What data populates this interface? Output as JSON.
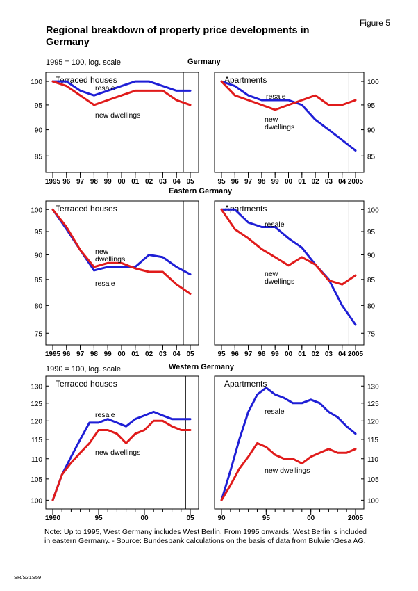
{
  "figure_label": "Figure 5",
  "title": "Regional breakdown of property price developments in Germany",
  "note": "Note: Up to 1995, West Germany includes West Berlin. From 1995 onwards, West Berlin is included in eastern Germany. - Source: Bundesbank calculations on the basis of data from BulwienGesa AG.",
  "code": "SR/S31S59",
  "colors": {
    "resale": "#1f1fd6",
    "new_dwellings": "#e01b1b"
  },
  "scale_notes": [
    "1995 = 100, log. scale",
    "1990 = 100, log. scale"
  ],
  "region_titles": [
    "Germany",
    "Eastern Germany",
    "Western Germany"
  ],
  "chart_data": [
    {
      "type": "line",
      "region": "Germany",
      "title": "Terraced houses",
      "scale": "log",
      "x": [
        1995,
        1996,
        1997,
        1998,
        1999,
        2000,
        2001,
        2002,
        2003,
        2004,
        2005
      ],
      "xticklabels": [
        "1995",
        "96",
        "97",
        "98",
        "99",
        "00",
        "01",
        "02",
        "03",
        "04",
        "05"
      ],
      "ylim": [
        82,
        102
      ],
      "yticks": [
        85,
        90,
        95,
        100
      ],
      "series": [
        {
          "name": "resale",
          "values": [
            100,
            100,
            98,
            97,
            98,
            99,
            100,
            100,
            99,
            98,
            98
          ]
        },
        {
          "name": "new dwellings",
          "values": [
            100,
            99,
            97,
            95,
            96,
            97,
            98,
            98,
            98,
            96,
            95
          ]
        }
      ]
    },
    {
      "type": "line",
      "region": "Germany",
      "title": "Apartments",
      "scale": "log",
      "x": [
        1995,
        1996,
        1997,
        1998,
        1999,
        2000,
        2001,
        2002,
        2003,
        2004,
        2005
      ],
      "xticklabels": [
        "95",
        "96",
        "97",
        "98",
        "99",
        "00",
        "01",
        "02",
        "03",
        "04",
        "2005"
      ],
      "ylim": [
        82,
        102
      ],
      "yticks": [
        85,
        90,
        95,
        100
      ],
      "series": [
        {
          "name": "resale",
          "values": [
            100,
            99,
            97,
            96,
            96,
            96,
            95,
            92,
            90,
            88,
            86
          ]
        },
        {
          "name": "new\ndwellings",
          "values": [
            100,
            97,
            96,
            95,
            94,
            95,
            96,
            97,
            95,
            95,
            96
          ]
        }
      ]
    },
    {
      "type": "line",
      "region": "Eastern Germany",
      "title": "Terraced houses",
      "scale": "log",
      "x": [
        1995,
        1996,
        1997,
        1998,
        1999,
        2000,
        2001,
        2002,
        2003,
        2004,
        2005
      ],
      "xticklabels": [
        "1995",
        "96",
        "97",
        "98",
        "99",
        "00",
        "01",
        "02",
        "03",
        "04",
        "05"
      ],
      "ylim": [
        73,
        102
      ],
      "yticks": [
        75,
        80,
        85,
        90,
        95,
        100
      ],
      "series": [
        {
          "name": "resale",
          "values": [
            100,
            95.5,
            91,
            86.8,
            87.5,
            87.5,
            87.5,
            90,
            89.5,
            87.5,
            86
          ]
        },
        {
          "name": "new\ndwellings",
          "values": [
            100,
            96,
            91,
            87.5,
            88.3,
            88.3,
            87.2,
            86.5,
            86.5,
            84,
            82.2
          ]
        }
      ]
    },
    {
      "type": "line",
      "region": "Eastern Germany",
      "title": "Apartments",
      "scale": "log",
      "x": [
        1995,
        1996,
        1997,
        1998,
        1999,
        2000,
        2001,
        2002,
        2003,
        2004,
        2005
      ],
      "xticklabels": [
        "95",
        "96",
        "97",
        "98",
        "99",
        "00",
        "01",
        "02",
        "03",
        "04",
        "2005"
      ],
      "ylim": [
        73,
        102
      ],
      "yticks": [
        75,
        80,
        85,
        90,
        95,
        100
      ],
      "series": [
        {
          "name": "resale",
          "values": [
            100,
            100,
            97,
            96,
            96,
            93.5,
            91.5,
            88,
            85,
            80,
            76.5
          ]
        },
        {
          "name": "new\ndwellings",
          "values": [
            100,
            95.5,
            93.5,
            91.2,
            89.5,
            87.8,
            89.5,
            88,
            84.8,
            84,
            85.8
          ]
        }
      ]
    },
    {
      "type": "line",
      "region": "Western Germany",
      "title": "Terraced houses",
      "scale": "log",
      "x": [
        1990,
        1991,
        1992,
        1993,
        1994,
        1995,
        1996,
        1997,
        1998,
        1999,
        2000,
        2001,
        2002,
        2003,
        2004,
        2005
      ],
      "xticks": [
        1990,
        1995,
        2000,
        2005
      ],
      "xticklabels": [
        "1990",
        "95",
        "00",
        "05"
      ],
      "ylim": [
        98,
        133
      ],
      "yticks": [
        100,
        105,
        110,
        115,
        120,
        125,
        130
      ],
      "series": [
        {
          "name": "resale",
          "values": [
            100,
            106,
            110.5,
            115,
            119.5,
            119.5,
            120.5,
            119.5,
            118.5,
            120.5,
            121.5,
            122.5,
            121.5,
            120.5,
            120.5,
            120.5
          ]
        },
        {
          "name": "new dwellings",
          "values": [
            100,
            106,
            109,
            111.5,
            114,
            117.5,
            117.5,
            116.5,
            114,
            116.5,
            117.5,
            120,
            120,
            118.5,
            117.5,
            117.5
          ]
        }
      ]
    },
    {
      "type": "line",
      "region": "Western Germany",
      "title": "Apartments",
      "scale": "log",
      "x": [
        1990,
        1991,
        1992,
        1993,
        1994,
        1995,
        1996,
        1997,
        1998,
        1999,
        2000,
        2001,
        2002,
        2003,
        2004,
        2005
      ],
      "xticks": [
        1990,
        1995,
        2000,
        2005
      ],
      "xticklabels": [
        "90",
        "95",
        "00",
        "2005"
      ],
      "ylim": [
        98,
        133
      ],
      "yticks": [
        100,
        105,
        110,
        115,
        120,
        125,
        130
      ],
      "series": [
        {
          "name": "resale",
          "values": [
            100,
            107,
            115,
            122.5,
            127.5,
            129.5,
            127.5,
            126.5,
            125,
            125,
            126,
            125,
            122.5,
            121,
            118.5,
            116.5
          ]
        },
        {
          "name": "new dwellings",
          "values": [
            100,
            103.5,
            107.5,
            110.5,
            114,
            113,
            111,
            110,
            110,
            108.8,
            110.5,
            111.5,
            112.5,
            111.5,
            111.5,
            112.5
          ]
        }
      ]
    }
  ]
}
